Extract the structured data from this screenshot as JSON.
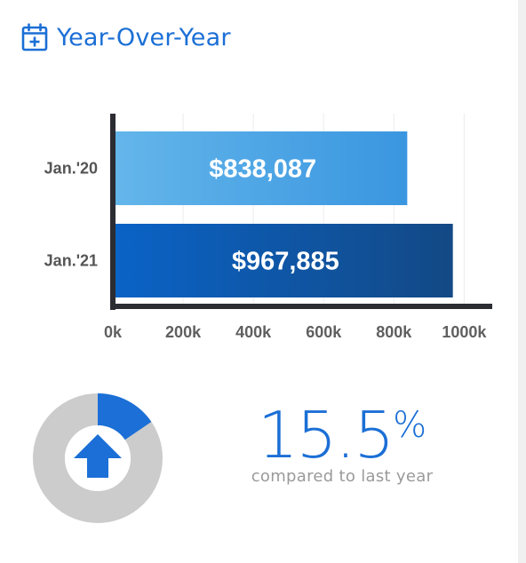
{
  "header": {
    "title": "Year-Over-Year",
    "icon": "calendar-plus-icon"
  },
  "colors": {
    "accent": "#1b6fd6",
    "bar_2020_start": "#64b6ea",
    "bar_2020_end": "#3a96e0",
    "bar_2021_start": "#0a63c7",
    "bar_2021_end": "#134985",
    "donut_track": "#cccccc",
    "axis": "#2c2c33"
  },
  "chart_data": {
    "type": "bar",
    "orientation": "horizontal",
    "categories": [
      "Jan.'20",
      "Jan.'21"
    ],
    "values": [
      838087,
      967885
    ],
    "data_labels": [
      "$838,087",
      "$967,885"
    ],
    "xticks": [
      "0k",
      "200k",
      "400k",
      "600k",
      "800k",
      "1000k"
    ],
    "xlim": [
      0,
      1080000
    ],
    "grid": true
  },
  "change": {
    "value": "15.5",
    "unit": "%",
    "caption": "compared to last year",
    "donut_fraction": 0.155,
    "direction": "up",
    "icon": "arrow-up-icon"
  }
}
